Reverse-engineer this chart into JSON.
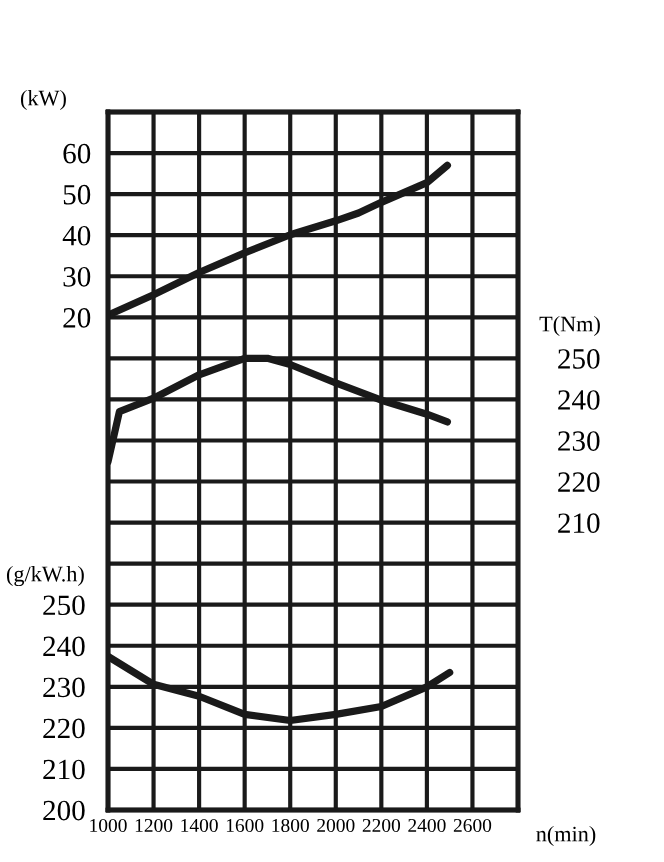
{
  "chart_data": {
    "type": "line",
    "ylabel": "(kW)",
    "y2label": "T(Nm)",
    "y3label": "(g/kW.h)",
    "xlabel": "n(min)",
    "x": [
      1000,
      1200,
      1400,
      1600,
      1800,
      2000,
      2100,
      2200,
      2400,
      2490
    ],
    "series": [
      {
        "color": "#1a1a1a",
        "axis": "y",
        "values": [
          20.5,
          25.5,
          30.9,
          35.7,
          40.1,
          43.5,
          45.4,
          48,
          52.8,
          57
        ]
      },
      {
        "color": "#1a1a1a",
        "axis": "y2",
        "x": [
          1000,
          1050,
          1200,
          1400,
          1600,
          1700,
          1800,
          2000,
          2200,
          2400,
          2490
        ],
        "values": [
          224.8,
          237,
          240.3,
          246,
          250,
          250,
          248.5,
          244,
          239.8,
          236.4,
          234.5
        ]
      },
      {
        "color": "#1a1a1a",
        "axis": "y3",
        "x": [
          1000,
          1200,
          1400,
          1600,
          1800,
          2000,
          2200,
          2400,
          2500
        ],
        "values": [
          237.4,
          230.6,
          227.7,
          223.3,
          221.8,
          223.3,
          225.2,
          230,
          233.5
        ]
      }
    ],
    "xlim": [
      1000,
      2800
    ],
    "xticks": [
      1000,
      1200,
      1400,
      1600,
      1800,
      2000,
      2200,
      2400,
      2600
    ],
    "ylim": [
      -100,
      70
    ],
    "yticks": [
      {
        "value": -90,
        "label": null
      },
      {
        "value": -80,
        "label": null
      },
      {
        "value": -70,
        "label": null
      },
      {
        "value": -60,
        "label": null
      },
      {
        "value": -50,
        "label": null
      },
      {
        "value": -40,
        "label": null
      },
      {
        "value": -30,
        "label": null
      },
      {
        "value": -20,
        "label": null
      },
      {
        "value": -10,
        "label": null
      },
      {
        "value": 0,
        "label": null
      },
      {
        "value": 10,
        "label": null
      },
      20,
      30,
      40,
      50,
      60
    ],
    "y2lim": [
      140,
      310
    ],
    "y2ticks": [
      210,
      220,
      230,
      240,
      250
    ],
    "y3lim": [
      200,
      370
    ],
    "y3ticks": [
      200,
      210,
      220,
      230,
      240,
      250
    ],
    "grid": true,
    "legend": false,
    "marker": "none",
    "line_style": "solid"
  }
}
